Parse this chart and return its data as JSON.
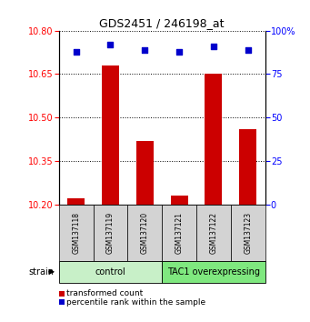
{
  "title": "GDS2451 / 246198_at",
  "samples": [
    "GSM137118",
    "GSM137119",
    "GSM137120",
    "GSM137121",
    "GSM137122",
    "GSM137123"
  ],
  "transformed_counts": [
    10.22,
    10.68,
    10.42,
    10.23,
    10.65,
    10.46
  ],
  "percentile_ranks": [
    88,
    92,
    89,
    88,
    91,
    89
  ],
  "group_label_1": "control",
  "group_label_2": "TAC1 overexpressing",
  "group_color_1": "#c8f0c8",
  "group_color_2": "#7fe87f",
  "ylim_left": [
    10.2,
    10.8
  ],
  "ylim_right": [
    0,
    100
  ],
  "yticks_left": [
    10.2,
    10.35,
    10.5,
    10.65,
    10.8
  ],
  "yticks_right": [
    0,
    25,
    50,
    75,
    100
  ],
  "bar_color": "#cc0000",
  "dot_color": "#0000cc",
  "dot_size": 18,
  "bar_width": 0.5,
  "sample_cell_color": "#d3d3d3",
  "legend_bar_label": "transformed count",
  "legend_dot_label": "percentile rank within the sample",
  "title_fontsize": 9,
  "tick_fontsize": 7,
  "sample_fontsize": 5.5,
  "group_fontsize": 7,
  "legend_fontsize": 6.5
}
